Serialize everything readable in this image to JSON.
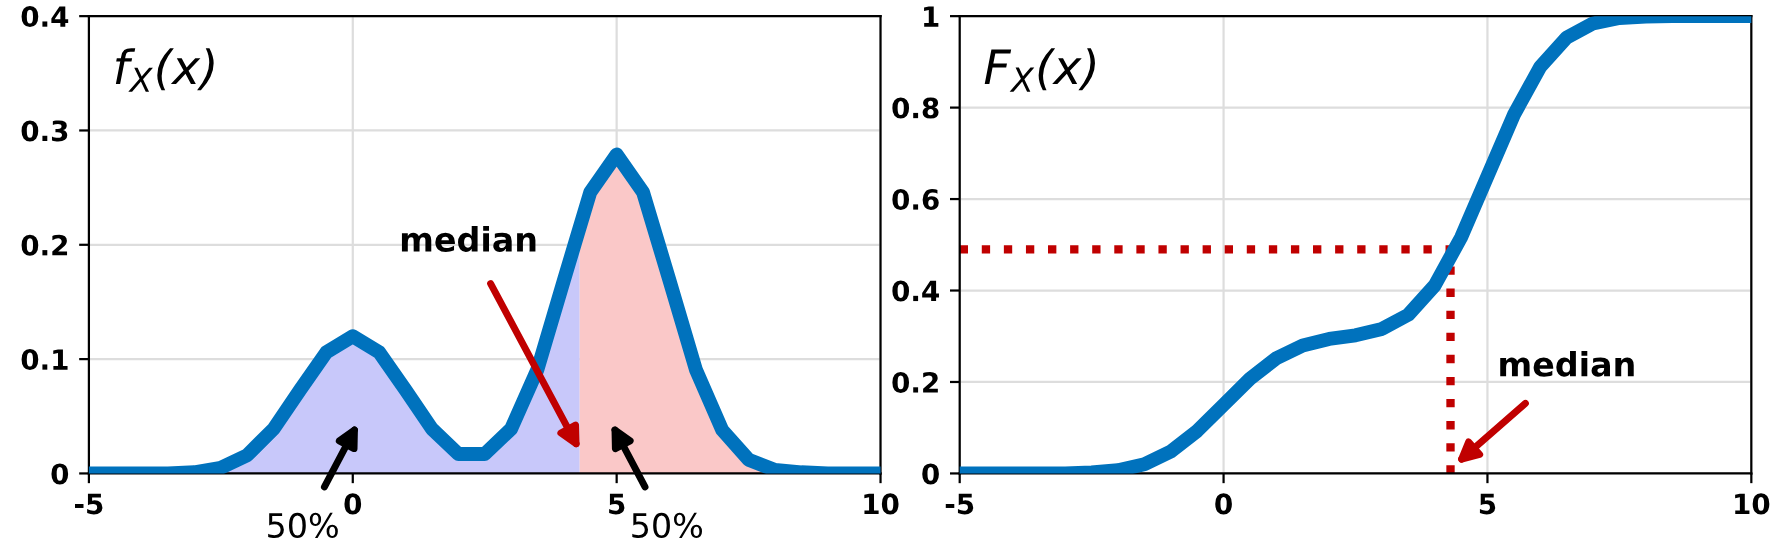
{
  "chart_data": [
    {
      "type": "line",
      "xlim": [
        -5,
        10
      ],
      "ylim": [
        0,
        0.4
      ],
      "xticks": [
        -5,
        0,
        5,
        10
      ],
      "yticks": [
        0,
        0.1,
        0.2,
        0.3,
        0.4
      ],
      "grid": true,
      "marker": "none",
      "annotations": [
        "f$_{X}$(x)",
        {
          "text": "median",
          "x": 4.3,
          "y": 0.02
        },
        "50%",
        "50%"
      ],
      "series": [
        {
          "type": "area",
          "color": "#c8c8fa",
          "x": [
            -5,
            -4.5,
            -4,
            -3.5,
            -3,
            -2.5,
            -2,
            -1.5,
            -1,
            -0.5,
            0,
            0.5,
            1,
            1.5,
            2,
            2.5,
            3,
            3.5,
            4,
            4.3
          ],
          "values": [
            0,
            0,
            0,
            0,
            0.001,
            0.005,
            0.016,
            0.039,
            0.073,
            0.106,
            0.12,
            0.106,
            0.073,
            0.039,
            0.017,
            0.017,
            0.039,
            0.091,
            0.169,
            0.219
          ]
        },
        {
          "type": "area",
          "color": "#fac8c8",
          "x": [
            4.3,
            4.5,
            5,
            5.5,
            6,
            6.5,
            7,
            7.5,
            8,
            8.5,
            9,
            9.5,
            10
          ],
          "values": [
            0.219,
            0.246,
            0.279,
            0.246,
            0.169,
            0.091,
            0.038,
            0.012,
            0.003,
            0.001,
            0,
            0,
            0
          ]
        },
        {
          "color": "#0072bd",
          "line_style": "solid",
          "x": [
            -5,
            -4.5,
            -4,
            -3.5,
            -3,
            -2.5,
            -2,
            -1.5,
            -1,
            -0.5,
            0,
            0.5,
            1,
            1.5,
            2,
            2.5,
            3,
            3.5,
            4,
            4.5,
            5,
            5.5,
            6,
            6.5,
            7,
            7.5,
            8,
            8.5,
            9,
            9.5,
            10
          ],
          "values": [
            0,
            0,
            0,
            0,
            0.001,
            0.005,
            0.016,
            0.039,
            0.073,
            0.106,
            0.12,
            0.106,
            0.073,
            0.039,
            0.017,
            0.017,
            0.039,
            0.091,
            0.169,
            0.246,
            0.279,
            0.246,
            0.169,
            0.091,
            0.038,
            0.012,
            0.003,
            0.001,
            0,
            0,
            0
          ]
        }
      ]
    },
    {
      "type": "line",
      "xlim": [
        -5,
        10
      ],
      "ylim": [
        0,
        1
      ],
      "xticks": [
        -5,
        0,
        5,
        10
      ],
      "yticks": [
        0,
        0.2,
        0.4,
        0.6,
        0.8,
        1
      ],
      "grid": true,
      "marker": "none",
      "annotations": [
        "F$_{X}$(x)",
        {
          "text": "median",
          "x": 4.4,
          "y": 0.02
        }
      ],
      "series": [
        {
          "color": "#0072bd",
          "line_style": "solid",
          "x": [
            -5,
            -4.5,
            -4,
            -3.5,
            -3,
            -2.5,
            -2,
            -1.5,
            -1,
            -0.5,
            0,
            0.5,
            1,
            1.5,
            2,
            2.5,
            3,
            3.5,
            4,
            4.5,
            5,
            5.5,
            6,
            6.5,
            7,
            7.5,
            8,
            8.5,
            9,
            9.5,
            10
          ],
          "values": [
            0,
            0,
            0,
            0,
            0,
            0.002,
            0.007,
            0.02,
            0.048,
            0.093,
            0.15,
            0.207,
            0.252,
            0.28,
            0.294,
            0.302,
            0.316,
            0.347,
            0.411,
            0.516,
            0.65,
            0.784,
            0.889,
            0.953,
            0.984,
            0.996,
            0.999,
            1,
            1,
            1,
            1
          ]
        },
        {
          "color": "#c00000",
          "line_style": "dotted",
          "x": [
            -5,
            4.3,
            4.3
          ],
          "values": [
            0.49,
            0.49,
            0
          ]
        }
      ]
    }
  ]
}
